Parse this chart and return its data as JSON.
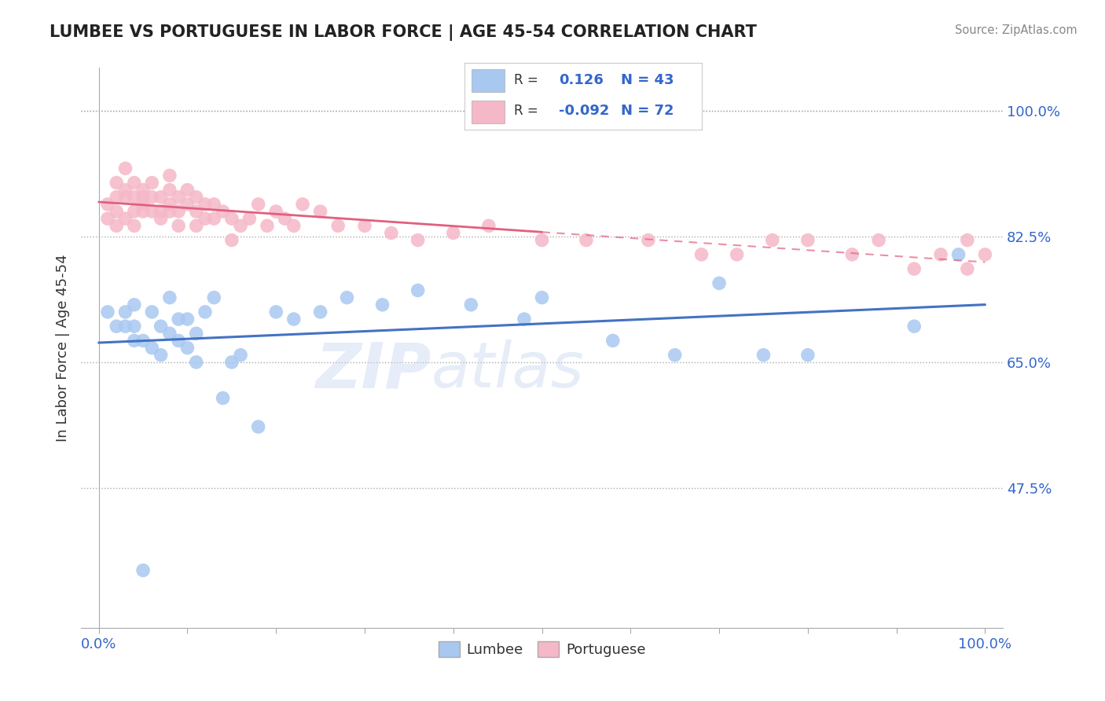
{
  "title": "LUMBEE VS PORTUGUESE IN LABOR FORCE | AGE 45-54 CORRELATION CHART",
  "source": "Source: ZipAtlas.com",
  "ylabel": "In Labor Force | Age 45-54",
  "xlim": [
    -0.02,
    1.02
  ],
  "ylim": [
    0.28,
    1.06
  ],
  "ytick_right": [
    0.475,
    0.65,
    0.825,
    1.0
  ],
  "ytick_right_labels": [
    "47.5%",
    "65.0%",
    "82.5%",
    "100.0%"
  ],
  "lumbee_R": 0.126,
  "lumbee_N": 43,
  "portuguese_R": -0.092,
  "portuguese_N": 72,
  "lumbee_color": "#a8c8f0",
  "portuguese_color": "#f5b8c8",
  "lumbee_line_color": "#4472c4",
  "portuguese_line_color": "#e06080",
  "lumbee_x": [
    0.01,
    0.02,
    0.03,
    0.03,
    0.04,
    0.04,
    0.04,
    0.05,
    0.05,
    0.06,
    0.06,
    0.07,
    0.07,
    0.08,
    0.08,
    0.09,
    0.09,
    0.1,
    0.1,
    0.11,
    0.11,
    0.12,
    0.13,
    0.14,
    0.15,
    0.16,
    0.18,
    0.2,
    0.22,
    0.25,
    0.28,
    0.32,
    0.36,
    0.42,
    0.48,
    0.5,
    0.58,
    0.65,
    0.7,
    0.75,
    0.8,
    0.92,
    0.97
  ],
  "lumbee_y": [
    0.72,
    0.7,
    0.7,
    0.72,
    0.68,
    0.7,
    0.73,
    0.36,
    0.68,
    0.67,
    0.72,
    0.66,
    0.7,
    0.69,
    0.74,
    0.68,
    0.71,
    0.67,
    0.71,
    0.65,
    0.69,
    0.72,
    0.74,
    0.6,
    0.65,
    0.66,
    0.56,
    0.72,
    0.71,
    0.72,
    0.74,
    0.73,
    0.75,
    0.73,
    0.71,
    0.74,
    0.68,
    0.66,
    0.76,
    0.66,
    0.66,
    0.7,
    0.8
  ],
  "portuguese_x": [
    0.01,
    0.01,
    0.02,
    0.02,
    0.02,
    0.02,
    0.03,
    0.03,
    0.03,
    0.03,
    0.04,
    0.04,
    0.04,
    0.04,
    0.05,
    0.05,
    0.05,
    0.05,
    0.06,
    0.06,
    0.06,
    0.07,
    0.07,
    0.07,
    0.08,
    0.08,
    0.08,
    0.08,
    0.09,
    0.09,
    0.09,
    0.1,
    0.1,
    0.11,
    0.11,
    0.11,
    0.12,
    0.12,
    0.13,
    0.13,
    0.14,
    0.15,
    0.15,
    0.16,
    0.17,
    0.18,
    0.19,
    0.2,
    0.21,
    0.22,
    0.23,
    0.25,
    0.27,
    0.3,
    0.33,
    0.36,
    0.4,
    0.44,
    0.5,
    0.55,
    0.62,
    0.68,
    0.72,
    0.76,
    0.8,
    0.85,
    0.88,
    0.92,
    0.95,
    0.98,
    0.98,
    1.0
  ],
  "portuguese_y": [
    0.85,
    0.87,
    0.88,
    0.9,
    0.86,
    0.84,
    0.88,
    0.85,
    0.89,
    0.92,
    0.86,
    0.88,
    0.84,
    0.9,
    0.87,
    0.89,
    0.86,
    0.88,
    0.88,
    0.86,
    0.9,
    0.86,
    0.88,
    0.85,
    0.86,
    0.89,
    0.91,
    0.87,
    0.86,
    0.88,
    0.84,
    0.87,
    0.89,
    0.86,
    0.88,
    0.84,
    0.87,
    0.85,
    0.85,
    0.87,
    0.86,
    0.85,
    0.82,
    0.84,
    0.85,
    0.87,
    0.84,
    0.86,
    0.85,
    0.84,
    0.87,
    0.86,
    0.84,
    0.84,
    0.83,
    0.82,
    0.83,
    0.84,
    0.82,
    0.82,
    0.82,
    0.8,
    0.8,
    0.82,
    0.82,
    0.8,
    0.82,
    0.78,
    0.8,
    0.78,
    0.82,
    0.8
  ],
  "xtick_positions": [
    0.0,
    0.1,
    0.2,
    0.3,
    0.4,
    0.5,
    0.6,
    0.7,
    0.8,
    0.9,
    1.0
  ]
}
